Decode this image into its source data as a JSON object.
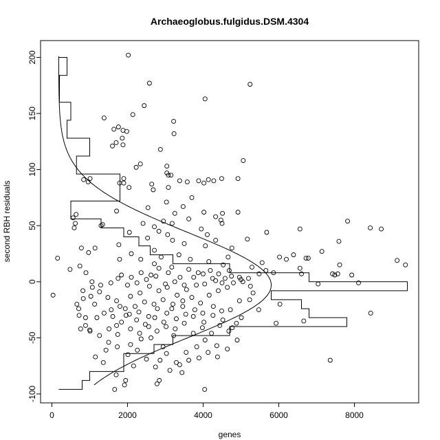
{
  "chart_data": {
    "type": "scatter",
    "title": "Archaeoglobus.fulgidus.DSM.4304",
    "xlabel": "genes",
    "ylabel": "second RBH residuals",
    "xlim": [
      -300,
      9700
    ],
    "ylim": [
      -108,
      215
    ],
    "xticks": [
      0,
      2000,
      4000,
      6000,
      8000
    ],
    "yticks": [
      -100,
      -50,
      0,
      50,
      100,
      150,
      200
    ],
    "grid": false,
    "legend": "none",
    "points": [
      [
        2020,
        202
      ],
      [
        5240,
        176
      ],
      [
        2580,
        177
      ],
      [
        4050,
        163
      ],
      [
        2440,
        157
      ],
      [
        2140,
        149
      ],
      [
        1380,
        146
      ],
      [
        3220,
        143
      ],
      [
        1760,
        138
      ],
      [
        1640,
        136
      ],
      [
        1880,
        135
      ],
      [
        1980,
        134
      ],
      [
        3230,
        132
      ],
      [
        1860,
        128
      ],
      [
        1880,
        122
      ],
      [
        1700,
        124
      ],
      [
        1600,
        121
      ],
      [
        2870,
        118
      ],
      [
        2340,
        105
      ],
      [
        3040,
        103
      ],
      [
        5060,
        108
      ],
      [
        2230,
        102
      ],
      [
        3040,
        97
      ],
      [
        3080,
        95
      ],
      [
        3150,
        95
      ],
      [
        3880,
        90
      ],
      [
        4140,
        91
      ],
      [
        4490,
        92
      ],
      [
        1790,
        88
      ],
      [
        1900,
        88
      ],
      [
        2040,
        84
      ],
      [
        2640,
        87
      ],
      [
        3080,
        84
      ],
      [
        2680,
        82
      ],
      [
        3380,
        90
      ],
      [
        3580,
        89
      ],
      [
        3700,
        75
      ],
      [
        4020,
        88
      ],
      [
        4280,
        90
      ],
      [
        4920,
        92
      ],
      [
        1010,
        92
      ],
      [
        960,
        89
      ],
      [
        840,
        91
      ],
      [
        1900,
        92
      ],
      [
        1710,
        63
      ],
      [
        2540,
        66
      ],
      [
        3030,
        71
      ],
      [
        3250,
        61
      ],
      [
        3470,
        67
      ],
      [
        4020,
        62
      ],
      [
        4330,
        58
      ],
      [
        4920,
        62
      ],
      [
        4510,
        61
      ],
      [
        4500,
        52
      ],
      [
        3620,
        56
      ],
      [
        560,
        57
      ],
      [
        640,
        60
      ],
      [
        620,
        52
      ],
      [
        590,
        48
      ],
      [
        1300,
        50
      ],
      [
        1340,
        51
      ],
      [
        2410,
        52
      ],
      [
        2710,
        49
      ],
      [
        2950,
        54
      ],
      [
        3180,
        52
      ],
      [
        3950,
        47
      ],
      [
        4470,
        55
      ],
      [
        5680,
        44
      ],
      [
        6560,
        47
      ],
      [
        7820,
        54
      ],
      [
        8420,
        48
      ],
      [
        8710,
        47
      ],
      [
        2830,
        45
      ],
      [
        2530,
        39
      ],
      [
        3060,
        42
      ],
      [
        2050,
        44
      ],
      [
        1140,
        30
      ],
      [
        780,
        30
      ],
      [
        970,
        26
      ],
      [
        1770,
        33
      ],
      [
        2100,
        25
      ],
      [
        2710,
        28
      ],
      [
        3190,
        37
      ],
      [
        3500,
        34
      ],
      [
        4110,
        42
      ],
      [
        4330,
        37
      ],
      [
        5170,
        38
      ],
      [
        4760,
        30
      ],
      [
        4060,
        32
      ],
      [
        3360,
        24
      ],
      [
        1790,
        20
      ],
      [
        2350,
        20
      ],
      [
        2890,
        22
      ],
      [
        2710,
        16
      ],
      [
        3170,
        13
      ],
      [
        3660,
        20
      ],
      [
        4150,
        18
      ],
      [
        4660,
        22
      ],
      [
        5290,
        13
      ],
      [
        5560,
        17
      ],
      [
        5860,
        8
      ],
      [
        6020,
        22
      ],
      [
        6200,
        20
      ],
      [
        6390,
        24
      ],
      [
        6780,
        21
      ],
      [
        6720,
        21
      ],
      [
        7140,
        27
      ],
      [
        7590,
        36
      ],
      [
        7610,
        15
      ],
      [
        6560,
        12
      ],
      [
        6600,
        7
      ],
      [
        7420,
        7
      ],
      [
        7560,
        7
      ],
      [
        7930,
        6
      ],
      [
        8110,
        -1
      ],
      [
        9130,
        19
      ],
      [
        9350,
        15
      ],
      [
        7360,
        -70
      ],
      [
        8430,
        -28
      ],
      [
        7480,
        6
      ],
      [
        7040,
        -2
      ],
      [
        6660,
        -35
      ],
      [
        6030,
        -20
      ],
      [
        5930,
        -37
      ],
      [
        5660,
        10
      ],
      [
        5480,
        7
      ],
      [
        5200,
        3
      ],
      [
        4960,
        4
      ],
      [
        4690,
        10
      ],
      [
        4530,
        15
      ],
      [
        4410,
        7
      ],
      [
        4190,
        10
      ],
      [
        3870,
        8
      ],
      [
        3620,
        11
      ],
      [
        3390,
        4
      ],
      [
        3080,
        8
      ],
      [
        2830,
        12
      ],
      [
        2620,
        6
      ],
      [
        2360,
        8
      ],
      [
        2100,
        4
      ],
      [
        1840,
        6
      ],
      [
        1560,
        -1
      ],
      [
        1290,
        -3
      ],
      [
        1060,
        0
      ],
      [
        900,
        8
      ],
      [
        740,
        14
      ],
      [
        480,
        11
      ],
      [
        150,
        21
      ],
      [
        30,
        -12
      ],
      [
        710,
        -24
      ],
      [
        890,
        -32
      ],
      [
        1010,
        -44
      ],
      [
        760,
        -42
      ],
      [
        1190,
        -32
      ],
      [
        1510,
        -42
      ],
      [
        1710,
        -39
      ],
      [
        1960,
        -30
      ],
      [
        2240,
        -34
      ],
      [
        2470,
        -38
      ],
      [
        2720,
        -32
      ],
      [
        2960,
        -36
      ],
      [
        3170,
        -24
      ],
      [
        3460,
        -22
      ],
      [
        3740,
        -31
      ],
      [
        3990,
        -28
      ],
      [
        4260,
        -30
      ],
      [
        4490,
        -26
      ],
      [
        4720,
        -25
      ],
      [
        4960,
        -17
      ],
      [
        5230,
        -16
      ],
      [
        5470,
        -25
      ],
      [
        3220,
        -48
      ],
      [
        2940,
        -58
      ],
      [
        2620,
        -50
      ],
      [
        2360,
        -51
      ],
      [
        2080,
        -56
      ],
      [
        1730,
        -58
      ],
      [
        1430,
        -61
      ],
      [
        1150,
        -67
      ],
      [
        1360,
        -72
      ],
      [
        1700,
        -83
      ],
      [
        1950,
        -88
      ],
      [
        2160,
        -75
      ],
      [
        2860,
        -70
      ],
      [
        3030,
        -64
      ],
      [
        3290,
        -72
      ],
      [
        3550,
        -63
      ],
      [
        3830,
        -58
      ],
      [
        4050,
        -52
      ],
      [
        4360,
        -57
      ],
      [
        4640,
        -60
      ],
      [
        4900,
        -52
      ],
      [
        1000,
        -43
      ],
      [
        890,
        -39
      ],
      [
        1920,
        -92
      ],
      [
        2840,
        -88
      ],
      [
        2780,
        -91
      ],
      [
        3440,
        -81
      ],
      [
        4040,
        -96
      ],
      [
        1660,
        -96
      ],
      [
        2080,
        -13
      ],
      [
        2330,
        -10
      ],
      [
        2580,
        -4
      ],
      [
        2830,
        -8
      ],
      [
        3050,
        -5
      ],
      [
        3310,
        -12
      ],
      [
        3560,
        -7
      ],
      [
        3820,
        -3
      ],
      [
        4040,
        -2
      ],
      [
        4330,
        1
      ],
      [
        4580,
        3
      ],
      [
        4800,
        -1
      ],
      [
        5050,
        0
      ],
      [
        5320,
        -10
      ],
      [
        2200,
        -22
      ],
      [
        2450,
        -18
      ],
      [
        2700,
        -20
      ],
      [
        2940,
        -16
      ],
      [
        3200,
        -20
      ],
      [
        3460,
        -17
      ],
      [
        3700,
        -14
      ],
      [
        3930,
        -19
      ],
      [
        4160,
        -12
      ],
      [
        4400,
        -8
      ],
      [
        4640,
        -5
      ],
      [
        1260,
        -9
      ],
      [
        1480,
        -14
      ],
      [
        1710,
        -17
      ],
      [
        1940,
        -24
      ],
      [
        1380,
        -28
      ],
      [
        1610,
        -31
      ],
      [
        1840,
        -36
      ],
      [
        2080,
        -42
      ],
      [
        2320,
        -46
      ],
      [
        2560,
        -40
      ],
      [
        2780,
        -44
      ],
      [
        3020,
        -40
      ],
      [
        3260,
        -42
      ],
      [
        3500,
        -37
      ],
      [
        3740,
        -46
      ],
      [
        3980,
        -41
      ],
      [
        4220,
        -46
      ],
      [
        4440,
        -39
      ],
      [
        4680,
        -44
      ],
      [
        4880,
        -37
      ],
      [
        1130,
        -20
      ],
      [
        1070,
        -5
      ],
      [
        820,
        -8
      ],
      [
        660,
        -20
      ],
      [
        720,
        -30
      ],
      [
        830,
        -15
      ],
      [
        1030,
        -13
      ],
      [
        1260,
        -48
      ],
      [
        1500,
        -54
      ],
      [
        1740,
        -47
      ],
      [
        2010,
        -65
      ],
      [
        2260,
        -61
      ],
      [
        2500,
        -69
      ],
      [
        2740,
        -76
      ],
      [
        3120,
        -79
      ],
      [
        3380,
        -74
      ],
      [
        3620,
        -70
      ],
      [
        3890,
        -68
      ],
      [
        4130,
        -63
      ],
      [
        4380,
        -67
      ],
      [
        1570,
        -25
      ],
      [
        1800,
        -22
      ],
      [
        2050,
        -29
      ],
      [
        2300,
        -27
      ],
      [
        2560,
        -31
      ],
      [
        2790,
        -24
      ],
      [
        3040,
        -28
      ],
      [
        3290,
        -33
      ],
      [
        3540,
        -29
      ],
      [
        3780,
        -25
      ],
      [
        4020,
        -36
      ],
      [
        4270,
        -22
      ],
      [
        4520,
        -34
      ],
      [
        4770,
        -41
      ],
      [
        5010,
        -32
      ],
      [
        1750,
        3
      ],
      [
        2000,
        -3
      ],
      [
        2250,
        -1
      ],
      [
        2500,
        2
      ],
      [
        2750,
        5
      ],
      [
        3000,
        -2
      ],
      [
        3250,
        0
      ],
      [
        3500,
        -3
      ],
      [
        3750,
        4
      ],
      [
        4000,
        7
      ],
      [
        4250,
        3
      ],
      [
        4500,
        -1
      ],
      [
        4750,
        5
      ],
      [
        5000,
        2
      ],
      [
        5250,
        -4
      ]
    ],
    "histogram": {
      "bin_width": 8,
      "bin_bottoms": [
        -96,
        -88,
        -80,
        -72,
        -64,
        -56,
        -48,
        -40,
        -32,
        -24,
        -16,
        -8,
        0,
        8,
        16,
        24,
        32,
        40,
        48,
        56,
        64,
        72,
        80,
        88,
        96,
        104,
        112,
        120,
        128,
        136,
        144,
        152,
        160,
        168,
        176,
        184,
        192
      ],
      "gene_extents": [
        800,
        1000,
        1900,
        1900,
        2700,
        3200,
        4700,
        7800,
        6800,
        6600,
        5800,
        9400,
        6800,
        4700,
        3200,
        2600,
        2300,
        1900,
        1300,
        500,
        500,
        1800,
        1800,
        1800,
        650,
        650,
        1000,
        1000,
        400,
        400,
        500,
        500,
        200,
        200,
        200,
        400,
        400
      ]
    },
    "density_curve": {
      "mean": -3,
      "sd": 47,
      "peak_genes": 5800,
      "base_genes": 180,
      "y_range": [
        -92,
        201
      ]
    }
  }
}
